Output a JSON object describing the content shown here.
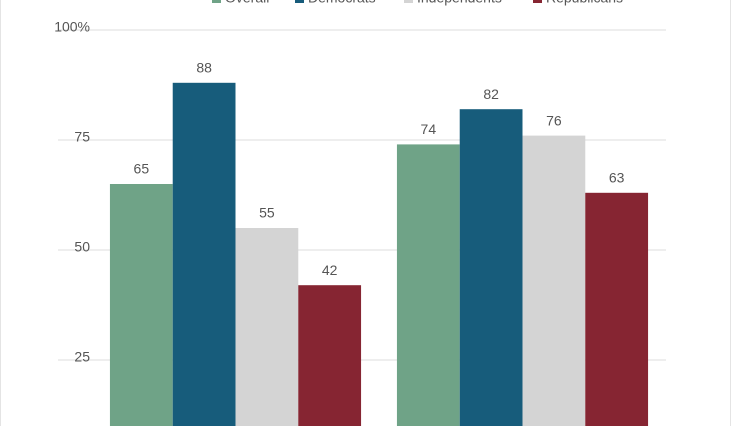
{
  "chart_data": {
    "type": "bar",
    "categories": [
      null,
      null
    ],
    "series": [
      {
        "name": "Overall",
        "color": "#6fa387",
        "values": [
          65,
          74
        ]
      },
      {
        "name": "Democrats",
        "color": "#175c7b",
        "values": [
          88,
          82
        ]
      },
      {
        "name": "Independents",
        "color": "#d4d4d4",
        "values": [
          55,
          76
        ]
      },
      {
        "name": "Republicans",
        "color": "#862532",
        "values": [
          42,
          63
        ]
      }
    ],
    "ylim": [
      10,
      100
    ],
    "yticks": [
      {
        "value": 100,
        "label": "100%"
      },
      75,
      50,
      25
    ],
    "grid": true
  }
}
